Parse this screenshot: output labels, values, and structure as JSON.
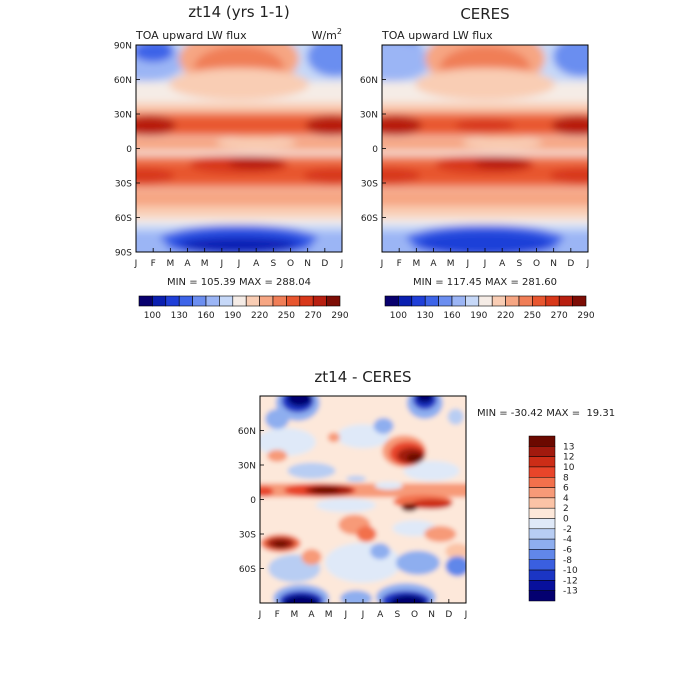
{
  "figure": {
    "panel1": {
      "title": "zt14 (yrs 1-1)",
      "subtitle": "TOA upward LW flux",
      "units": "W/m",
      "units_sup": "2",
      "stats": "MIN = 105.39 MAX = 288.04"
    },
    "panel2": {
      "title": "CERES",
      "subtitle": "TOA upward LW flux",
      "stats": "MIN = 117.45 MAX = 281.60"
    },
    "panel3": {
      "title": "zt14 - CERES",
      "stats": "MIN = -30.42 MAX =  19.31"
    }
  },
  "chart_data": [
    {
      "type": "heatmap",
      "title": "zt14 (yrs 1-1)",
      "subtitle": "TOA upward LW flux",
      "units": "W/m2",
      "x": [
        "J",
        "F",
        "M",
        "A",
        "M",
        "J",
        "J",
        "A",
        "S",
        "O",
        "N",
        "D",
        "J"
      ],
      "y_ticks": [
        "90N",
        "60N",
        "30N",
        "0",
        "30S",
        "60S",
        "90S"
      ],
      "ylim": [
        -90,
        90
      ],
      "min": 105.39,
      "max": 288.04,
      "colorbar": {
        "labels": [
          "100",
          "130",
          "160",
          "190",
          "220",
          "250",
          "270",
          "290"
        ],
        "levels": 15
      }
    },
    {
      "type": "heatmap",
      "title": "CERES",
      "subtitle": "TOA upward LW flux",
      "x": [
        "J",
        "F",
        "M",
        "A",
        "M",
        "J",
        "J",
        "A",
        "S",
        "O",
        "N",
        "D",
        "J"
      ],
      "y_ticks": [
        "60N",
        "30N",
        "0",
        "30S",
        "60S"
      ],
      "ylim": [
        -90,
        90
      ],
      "min": 117.45,
      "max": 281.6,
      "colorbar": {
        "labels": [
          "100",
          "130",
          "160",
          "190",
          "220",
          "250",
          "270",
          "290"
        ],
        "levels": 15
      }
    },
    {
      "type": "heatmap",
      "title": "zt14 - CERES",
      "x": [
        "J",
        "F",
        "M",
        "A",
        "M",
        "J",
        "J",
        "A",
        "S",
        "O",
        "N",
        "D",
        "J"
      ],
      "y_ticks": [
        "60N",
        "30N",
        "0",
        "30S",
        "60S"
      ],
      "ylim": [
        -90,
        90
      ],
      "min": -30.42,
      "max": 19.31,
      "colorbar": {
        "labels": [
          "13",
          "12",
          "10",
          "8",
          "6",
          "4",
          "2",
          "0",
          "-2",
          "-4",
          "-6",
          "-8",
          "-10",
          "-12",
          "-13"
        ]
      }
    }
  ],
  "colors": {
    "seq": [
      "#08006e",
      "#0a1fb0",
      "#1f3fd8",
      "#3d64e8",
      "#6b8ef0",
      "#9bb5f5",
      "#c6d8f8",
      "#f5ece6",
      "#f9cdb4",
      "#f6a683",
      "#f07e57",
      "#e8562f",
      "#d8381a",
      "#b81f10",
      "#7d0d05"
    ],
    "div": [
      "#6b0900",
      "#a11a0e",
      "#cc2d17",
      "#e8452a",
      "#f2704c",
      "#f79a78",
      "#fbc3a6",
      "#fde8da",
      "#dfe9f8",
      "#b8cdf3",
      "#8eaeef",
      "#6187ea",
      "#3a5fe0",
      "#1b35c4",
      "#08109c",
      "#040070"
    ]
  }
}
